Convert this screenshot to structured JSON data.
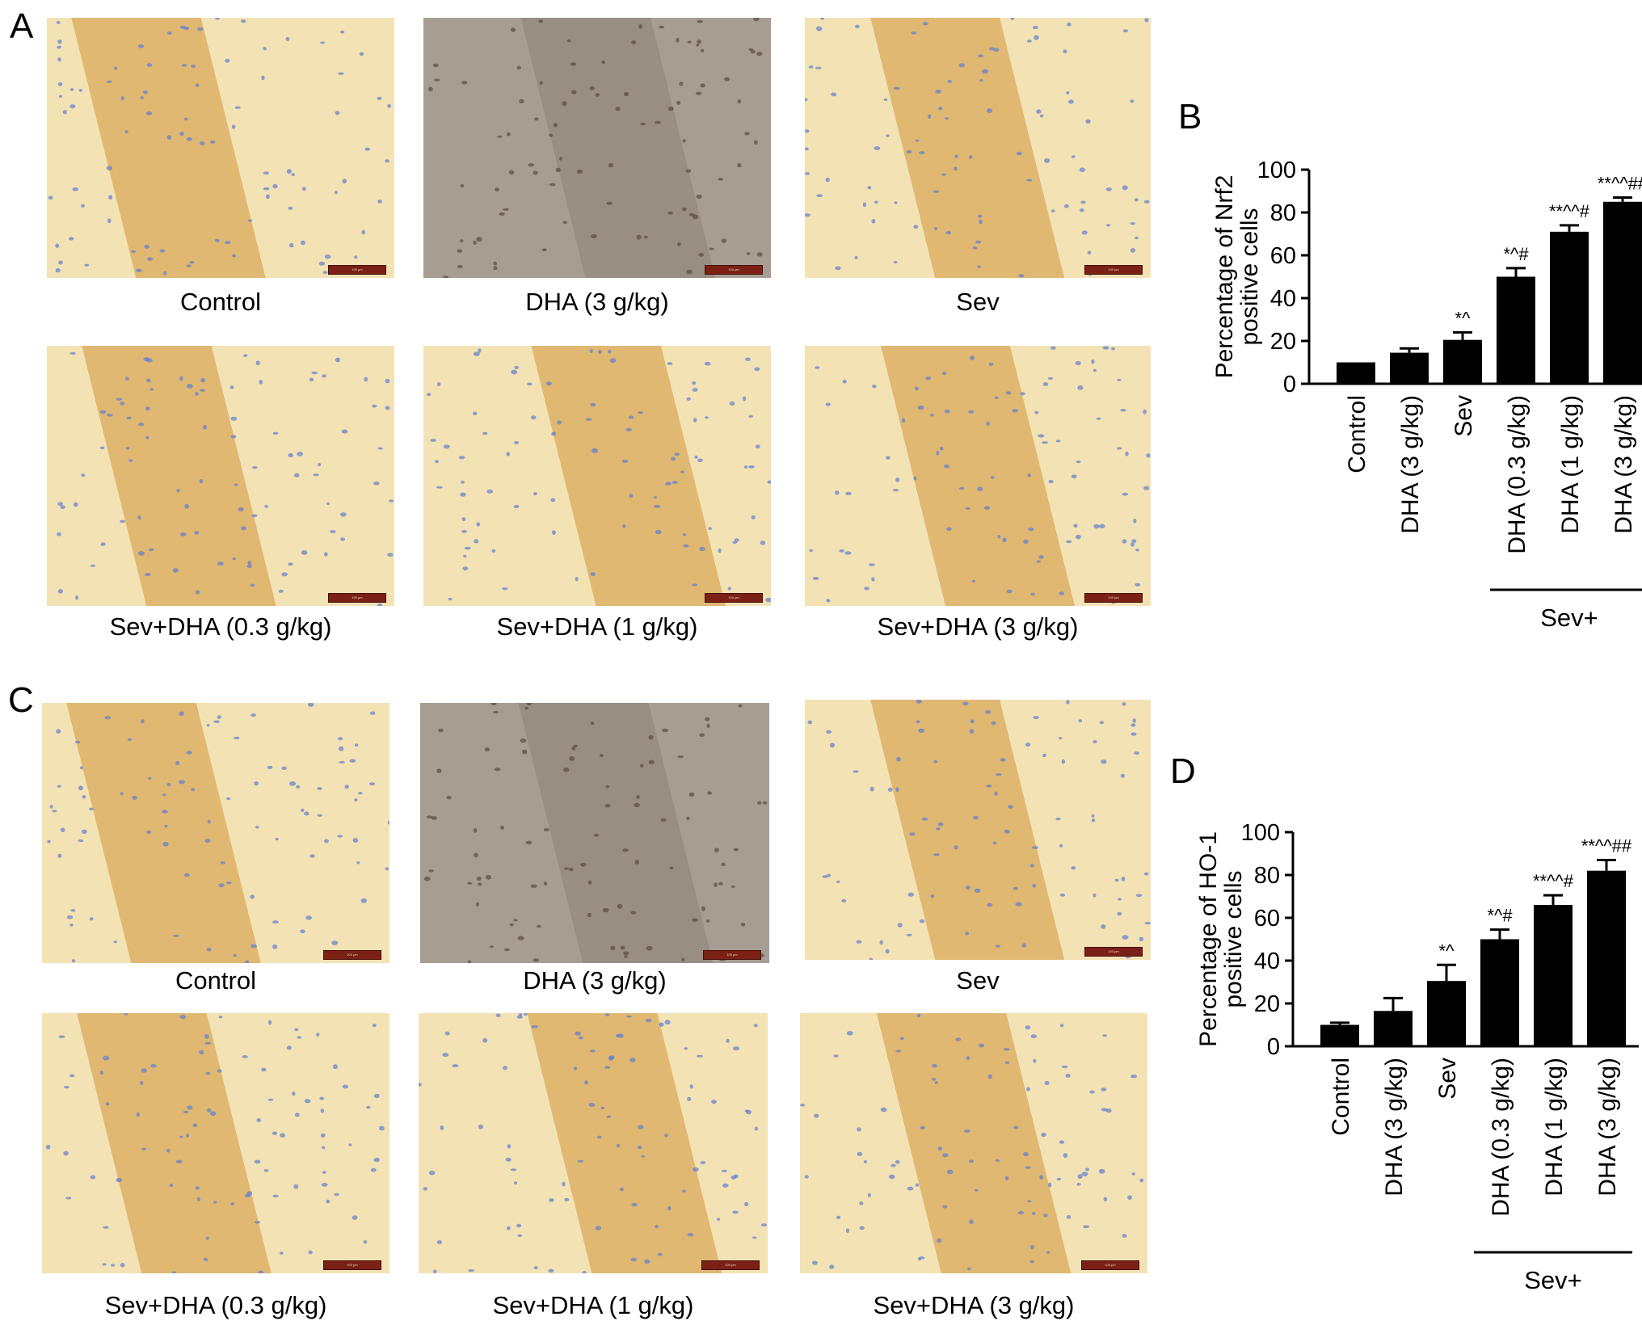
{
  "panels": {
    "A": {
      "letter": "A",
      "images": [
        {
          "caption": "Control",
          "tone": "tan",
          "scale": "100 μm"
        },
        {
          "caption": "DHA (3 g/kg)",
          "tone": "gray",
          "scale": "100 μm"
        },
        {
          "caption": "Sev",
          "tone": "tan",
          "scale": "100 μm"
        },
        {
          "caption": "Sev+DHA (0.3 g/kg)",
          "tone": "tan",
          "scale": "100 μm"
        },
        {
          "caption": "Sev+DHA (1 g/kg)",
          "tone": "tan",
          "scale": "100 μm"
        },
        {
          "caption": "Sev+DHA (3 g/kg)",
          "tone": "tan",
          "scale": "100 μm"
        }
      ]
    },
    "C": {
      "letter": "C",
      "images": [
        {
          "caption": "Control",
          "tone": "tan",
          "scale": "100 μm"
        },
        {
          "caption": "DHA (3 g/kg)",
          "tone": "gray",
          "scale": "100 μm"
        },
        {
          "caption": "Sev",
          "tone": "tan",
          "scale": "100 μm"
        },
        {
          "caption": "Sev+DHA (0.3 g/kg)",
          "tone": "tan",
          "scale": "100 μm"
        },
        {
          "caption": "Sev+DHA (1 g/kg)",
          "tone": "tan",
          "scale": "100 μm"
        },
        {
          "caption": "Sev+DHA (3 g/kg)",
          "tone": "tan",
          "scale": "100 μm"
        }
      ]
    },
    "B": {
      "letter": "B"
    },
    "D": {
      "letter": "D"
    }
  },
  "colors": {
    "bar": "#000000",
    "tissue_tan": "#f3e2b4",
    "tissue_stain": "#d9a95c",
    "tissue_gray": "#a79d93",
    "nuclei": "#5f7fd0"
  },
  "chart_data": [
    {
      "type": "bar",
      "panel": "B",
      "categories": [
        "Control",
        "DHA (3 g/kg)",
        "Sev",
        "DHA (0.3 g/kg)",
        "DHA (1 g/kg)",
        "DHA (3 g/kg)"
      ],
      "values": [
        10,
        14.5,
        20.5,
        50,
        71,
        85
      ],
      "errors": [
        0,
        2,
        3.5,
        4,
        3,
        2
      ],
      "annotations": [
        "",
        "",
        "*^",
        "*^#",
        "**^^#",
        "**^^##"
      ],
      "ylabel_line1": "Percentage of Nrf2",
      "ylabel_line2": "positive cells",
      "ylim": [
        0,
        100
      ],
      "yticks": [
        0,
        20,
        40,
        60,
        80,
        100
      ],
      "group_label": "Sev+",
      "group_start": 3
    },
    {
      "type": "bar",
      "panel": "D",
      "categories": [
        "Control",
        "DHA (3 g/kg)",
        "Sev",
        "DHA (0.3 g/kg)",
        "DHA (1 g/kg)",
        "DHA (3 g/kg)"
      ],
      "values": [
        10,
        16.5,
        30.5,
        50,
        66,
        82
      ],
      "errors": [
        1,
        6,
        7.5,
        4.5,
        4.5,
        5
      ],
      "annotations": [
        "",
        "",
        "*^",
        "*^#",
        "**^^#",
        "**^^##"
      ],
      "ylabel_line1": "Percentage of HO-1",
      "ylabel_line2": "positive cells",
      "ylim": [
        0,
        100
      ],
      "yticks": [
        0,
        20,
        40,
        60,
        80,
        100
      ],
      "group_label": "Sev+",
      "group_start": 3
    }
  ]
}
